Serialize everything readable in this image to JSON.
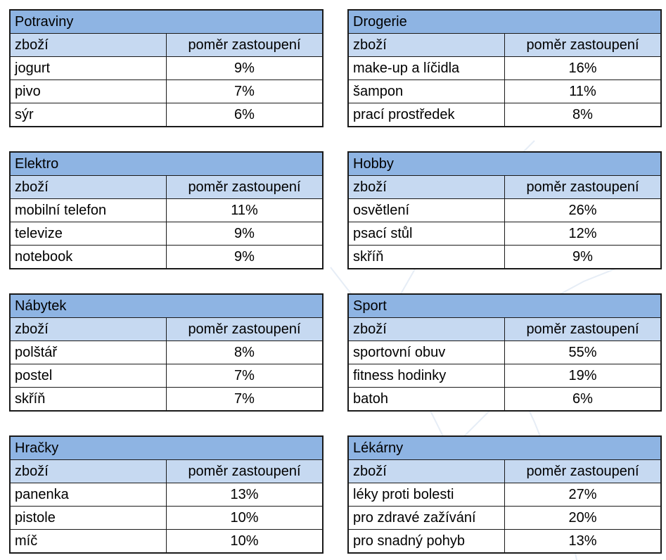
{
  "columns": {
    "item": "zboží",
    "share": "poměr zastoupení"
  },
  "tables": [
    {
      "category": "Potraviny",
      "rows": [
        {
          "item": "jogurt",
          "share": "9%"
        },
        {
          "item": "pivo",
          "share": "7%"
        },
        {
          "item": "sýr",
          "share": "6%"
        }
      ]
    },
    {
      "category": "Drogerie",
      "rows": [
        {
          "item": "make-up a líčidla",
          "share": "16%"
        },
        {
          "item": "šampon",
          "share": "11%"
        },
        {
          "item": "prací prostředek",
          "share": "8%"
        }
      ]
    },
    {
      "category": "Elektro",
      "rows": [
        {
          "item": "mobilní telefon",
          "share": "11%"
        },
        {
          "item": "televize",
          "share": "9%"
        },
        {
          "item": "notebook",
          "share": "9%"
        }
      ]
    },
    {
      "category": "Hobby",
      "rows": [
        {
          "item": "osvětlení",
          "share": "26%"
        },
        {
          "item": "psací stůl",
          "share": "12%"
        },
        {
          "item": "skříň",
          "share": "9%"
        }
      ]
    },
    {
      "category": "Nábytek",
      "rows": [
        {
          "item": "polštář",
          "share": "8%"
        },
        {
          "item": "postel",
          "share": "7%"
        },
        {
          "item": "skříň",
          "share": "7%"
        }
      ]
    },
    {
      "category": "Sport",
      "rows": [
        {
          "item": "sportovní obuv",
          "share": "55%"
        },
        {
          "item": "fitness hodinky",
          "share": "19%"
        },
        {
          "item": "batoh",
          "share": "6%"
        }
      ]
    },
    {
      "category": "Hračky",
      "rows": [
        {
          "item": "panenka",
          "share": "13%"
        },
        {
          "item": "pistole",
          "share": "10%"
        },
        {
          "item": "míč",
          "share": "10%"
        }
      ]
    },
    {
      "category": "Lékárny",
      "rows": [
        {
          "item": "léky proti bolesti",
          "share": "27%"
        },
        {
          "item": "pro zdravé zažívání",
          "share": "20%"
        },
        {
          "item": "pro snadný pohyb",
          "share": "13%"
        }
      ]
    }
  ],
  "colors": {
    "category_row": "#8eb4e3",
    "header_row": "#c6d9f1",
    "border": "#1a1a1a"
  }
}
